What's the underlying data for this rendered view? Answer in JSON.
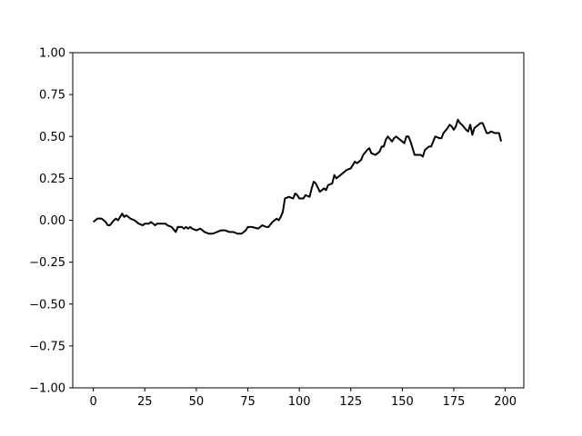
{
  "chart_data": {
    "type": "line",
    "title": "",
    "xlabel": "",
    "ylabel": "",
    "xlim": [
      -10,
      209
    ],
    "ylim": [
      -1.0,
      1.0
    ],
    "xticks": [
      0,
      25,
      50,
      75,
      100,
      125,
      150,
      175,
      200
    ],
    "xtick_labels": [
      "0",
      "25",
      "50",
      "75",
      "100",
      "125",
      "150",
      "175",
      "200"
    ],
    "yticks": [
      -1.0,
      -0.75,
      -0.5,
      -0.25,
      0.0,
      0.25,
      0.5,
      0.75,
      1.0
    ],
    "ytick_labels": [
      "−1.00",
      "−0.75",
      "−0.50",
      "−0.25",
      "0.00",
      "0.25",
      "0.50",
      "0.75",
      "1.00"
    ],
    "grid": false,
    "series": [
      {
        "name": "",
        "color": "#000000",
        "points": [
          [
            0,
            -0.01
          ],
          [
            2,
            0.01
          ],
          [
            4,
            0.01
          ],
          [
            6,
            -0.01
          ],
          [
            7,
            -0.03
          ],
          [
            8,
            -0.03
          ],
          [
            10,
            0.0
          ],
          [
            11,
            0.01
          ],
          [
            12,
            0.0
          ],
          [
            14,
            0.04
          ],
          [
            15,
            0.02
          ],
          [
            16,
            0.03
          ],
          [
            18,
            0.01
          ],
          [
            20,
            0.0
          ],
          [
            22,
            -0.02
          ],
          [
            24,
            -0.03
          ],
          [
            25,
            -0.02
          ],
          [
            27,
            -0.02
          ],
          [
            28,
            -0.01
          ],
          [
            30,
            -0.03
          ],
          [
            31,
            -0.02
          ],
          [
            33,
            -0.02
          ],
          [
            35,
            -0.02
          ],
          [
            36,
            -0.03
          ],
          [
            38,
            -0.04
          ],
          [
            40,
            -0.07
          ],
          [
            41,
            -0.04
          ],
          [
            43,
            -0.04
          ],
          [
            44,
            -0.05
          ],
          [
            45,
            -0.04
          ],
          [
            46,
            -0.05
          ],
          [
            47,
            -0.04
          ],
          [
            48,
            -0.05
          ],
          [
            50,
            -0.06
          ],
          [
            52,
            -0.05
          ],
          [
            54,
            -0.07
          ],
          [
            56,
            -0.08
          ],
          [
            58,
            -0.08
          ],
          [
            60,
            -0.07
          ],
          [
            62,
            -0.06
          ],
          [
            64,
            -0.06
          ],
          [
            66,
            -0.07
          ],
          [
            68,
            -0.07
          ],
          [
            70,
            -0.08
          ],
          [
            72,
            -0.08
          ],
          [
            74,
            -0.06
          ],
          [
            75,
            -0.04
          ],
          [
            77,
            -0.04
          ],
          [
            80,
            -0.05
          ],
          [
            82,
            -0.03
          ],
          [
            84,
            -0.04
          ],
          [
            85,
            -0.04
          ],
          [
            87,
            -0.01
          ],
          [
            89,
            0.01
          ],
          [
            90,
            0.0
          ],
          [
            91,
            0.02
          ],
          [
            92,
            0.05
          ],
          [
            93,
            0.13
          ],
          [
            95,
            0.14
          ],
          [
            97,
            0.13
          ],
          [
            98,
            0.16
          ],
          [
            99,
            0.15
          ],
          [
            100,
            0.13
          ],
          [
            102,
            0.13
          ],
          [
            103,
            0.15
          ],
          [
            105,
            0.14
          ],
          [
            106,
            0.19
          ],
          [
            107,
            0.23
          ],
          [
            108,
            0.22
          ],
          [
            110,
            0.17
          ],
          [
            111,
            0.18
          ],
          [
            112,
            0.19
          ],
          [
            113,
            0.18
          ],
          [
            114,
            0.21
          ],
          [
            116,
            0.22
          ],
          [
            117,
            0.27
          ],
          [
            118,
            0.25
          ],
          [
            120,
            0.27
          ],
          [
            122,
            0.29
          ],
          [
            123,
            0.3
          ],
          [
            125,
            0.31
          ],
          [
            127,
            0.35
          ],
          [
            128,
            0.34
          ],
          [
            130,
            0.36
          ],
          [
            131,
            0.39
          ],
          [
            133,
            0.42
          ],
          [
            134,
            0.43
          ],
          [
            135,
            0.4
          ],
          [
            137,
            0.39
          ],
          [
            139,
            0.41
          ],
          [
            140,
            0.44
          ],
          [
            141,
            0.44
          ],
          [
            142,
            0.48
          ],
          [
            143,
            0.5
          ],
          [
            145,
            0.47
          ],
          [
            146,
            0.49
          ],
          [
            147,
            0.5
          ],
          [
            149,
            0.48
          ],
          [
            150,
            0.47
          ],
          [
            151,
            0.46
          ],
          [
            152,
            0.5
          ],
          [
            153,
            0.5
          ],
          [
            154,
            0.47
          ],
          [
            156,
            0.39
          ],
          [
            157,
            0.39
          ],
          [
            159,
            0.39
          ],
          [
            160,
            0.38
          ],
          [
            161,
            0.42
          ],
          [
            163,
            0.44
          ],
          [
            164,
            0.44
          ],
          [
            166,
            0.5
          ],
          [
            168,
            0.49
          ],
          [
            169,
            0.49
          ],
          [
            170,
            0.52
          ],
          [
            172,
            0.55
          ],
          [
            173,
            0.57
          ],
          [
            174,
            0.56
          ],
          [
            175,
            0.54
          ],
          [
            176,
            0.56
          ],
          [
            177,
            0.6
          ],
          [
            178,
            0.58
          ],
          [
            179,
            0.57
          ],
          [
            181,
            0.54
          ],
          [
            182,
            0.53
          ],
          [
            183,
            0.57
          ],
          [
            184,
            0.51
          ],
          [
            185,
            0.55
          ],
          [
            187,
            0.57
          ],
          [
            188,
            0.58
          ],
          [
            189,
            0.58
          ],
          [
            190,
            0.55
          ],
          [
            191,
            0.52
          ],
          [
            192,
            0.52
          ],
          [
            193,
            0.53
          ],
          [
            195,
            0.52
          ],
          [
            196,
            0.52
          ],
          [
            197,
            0.52
          ],
          [
            198,
            0.47
          ]
        ]
      }
    ]
  }
}
